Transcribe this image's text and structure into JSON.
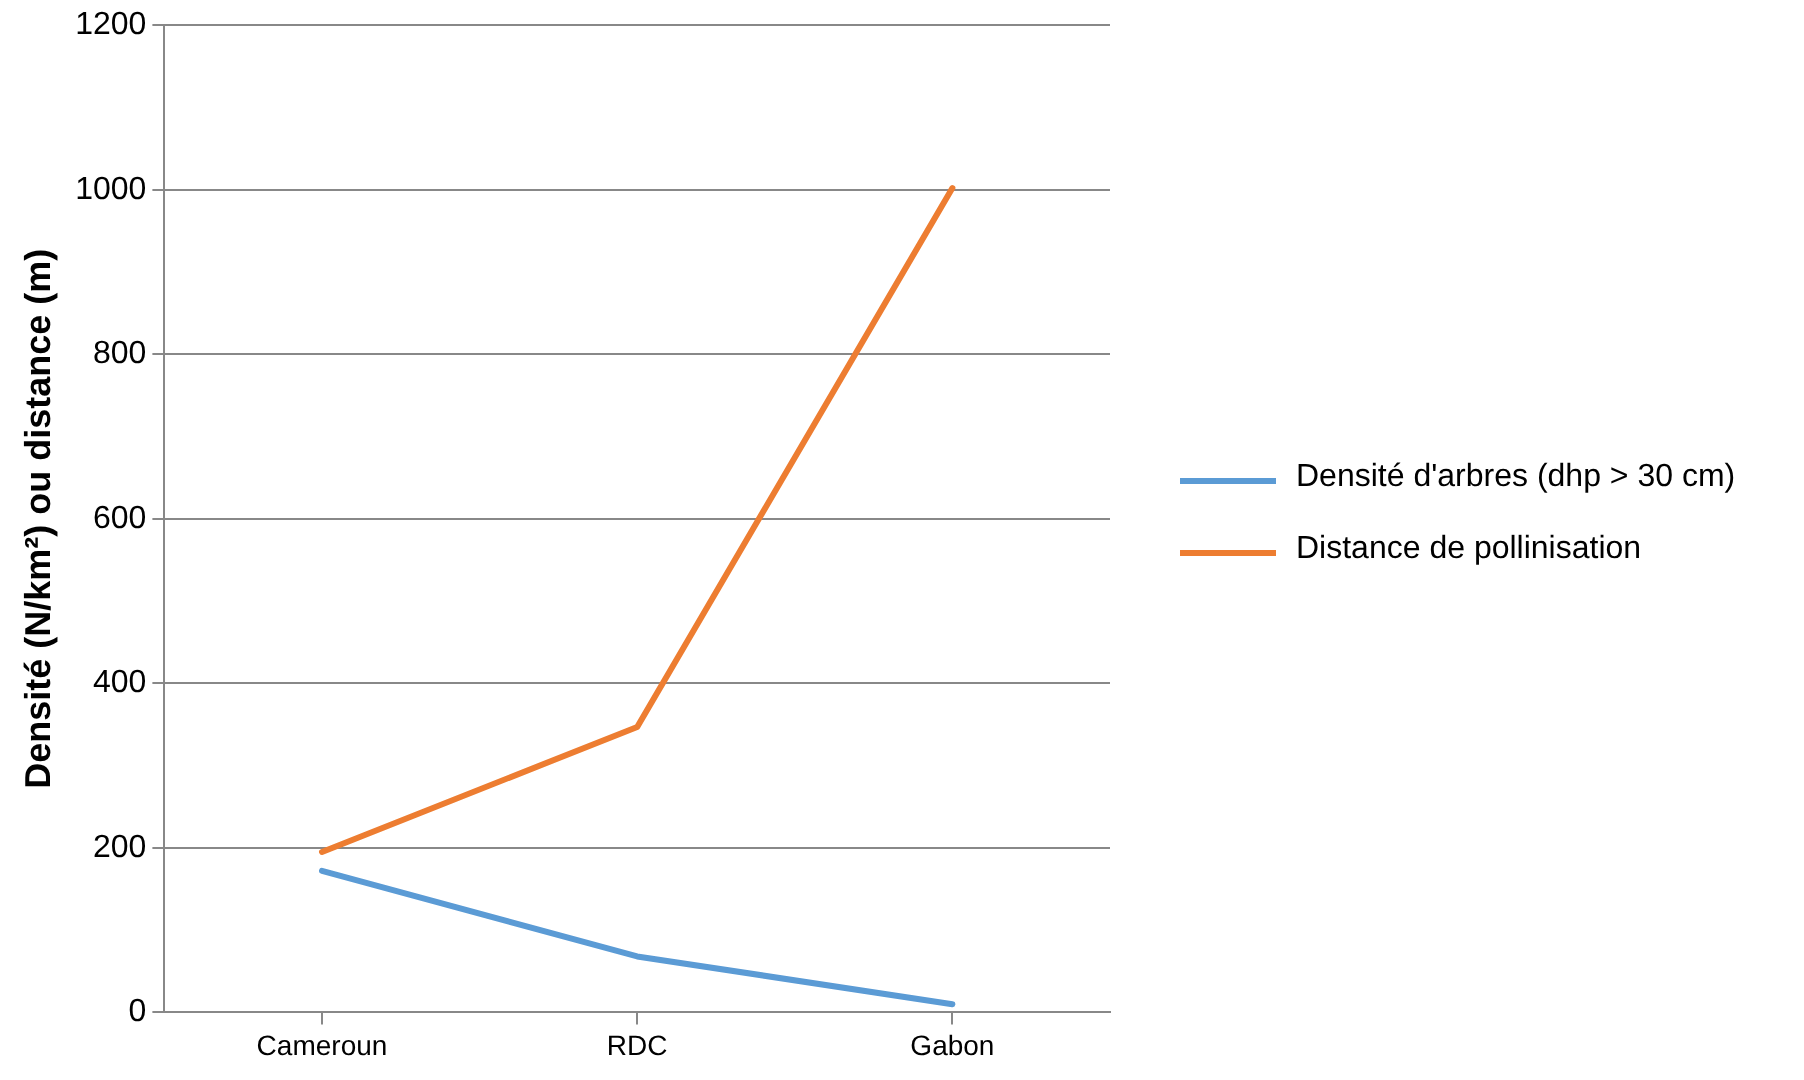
{
  "chart_data": {
    "type": "line",
    "ylabel": "Densité (N/km²) ou distance (m)",
    "categories": [
      "Cameroun",
      "RDC",
      "Gabon"
    ],
    "series": [
      {
        "name": "Densité d'arbres (dhp > 30 cm)",
        "color": "#5b9bd5",
        "values": [
          172,
          68,
          10
        ]
      },
      {
        "name": "Distance de pollinisation",
        "color": "#ed7d31",
        "values": [
          195,
          347,
          1002
        ]
      }
    ],
    "ylim": [
      0,
      1200
    ],
    "yticks": [
      0,
      200,
      400,
      600,
      800,
      1000,
      1200
    ],
    "grid": "y",
    "legend": "right",
    "marker": "none",
    "line_style": "solid"
  }
}
